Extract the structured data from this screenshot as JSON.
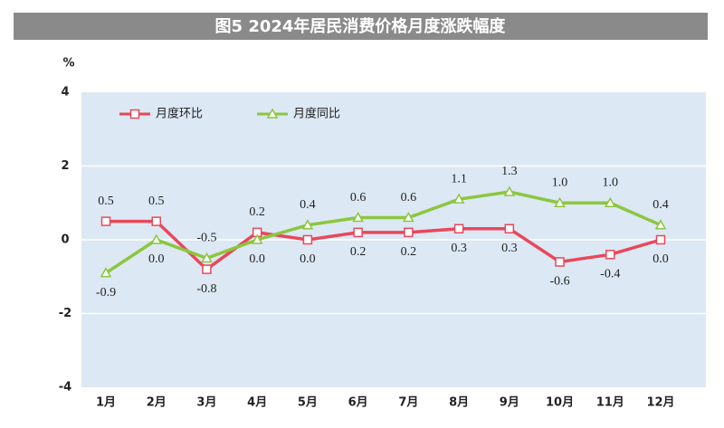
{
  "chart_data": {
    "type": "line",
    "title": "图5 2024年居民消费价格月度涨跌幅度",
    "y_label": "%",
    "categories": [
      "1月",
      "2月",
      "3月",
      "4月",
      "5月",
      "6月",
      "7月",
      "8月",
      "9月",
      "10月",
      "11月",
      "12月"
    ],
    "series": [
      {
        "name": "月度环比",
        "color": "#e8485a",
        "marker": "square",
        "values": [
          0.5,
          0.5,
          -0.8,
          0.2,
          0,
          0.2,
          0.2,
          0.3,
          0.3,
          -0.6,
          -0.4,
          0
        ],
        "value_labels": [
          "0.5",
          "0.5",
          "-0.8",
          "0.2",
          "0.0",
          "0.2",
          "0.2",
          "0.3",
          "0.3",
          "-0.6",
          "-0.4",
          "0.0"
        ]
      },
      {
        "name": "月度同比",
        "color": "#8cc63f",
        "marker": "triangle",
        "values": [
          -0.9,
          0,
          -0.5,
          0,
          0.4,
          0.6,
          0.6,
          1.1,
          1.3,
          1,
          1,
          0.4
        ],
        "value_labels": [
          "-0.9",
          "0.0",
          "-0.5",
          "0.0",
          "0.4",
          "0.6",
          "0.6",
          "1.1",
          "1.3",
          "1.0",
          "1.0",
          "0.4"
        ]
      }
    ],
    "ylim": [
      -4,
      4
    ],
    "yticks": [
      -4,
      -2,
      0,
      2,
      4
    ],
    "grid": true,
    "legend": "top-left"
  }
}
